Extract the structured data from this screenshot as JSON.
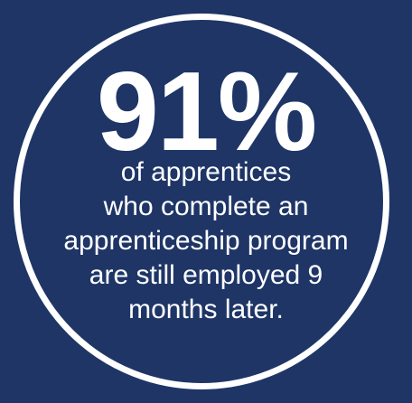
{
  "stat": {
    "value": "91%",
    "caption_lines": [
      "of apprentices",
      "who complete an",
      "apprenticeship program",
      "are still employed 9",
      "months later."
    ]
  },
  "colors": {
    "background": "#1e3566",
    "circle": "#ffffff",
    "text": "#ffffff"
  }
}
